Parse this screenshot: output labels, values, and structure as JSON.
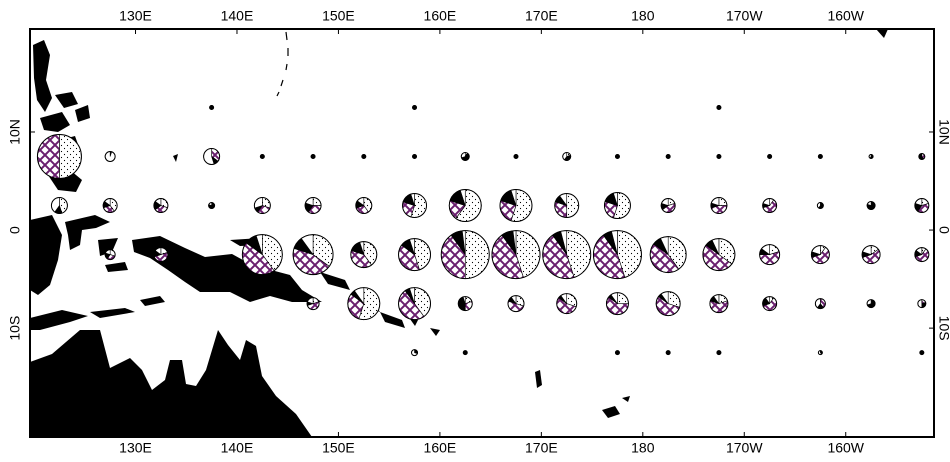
{
  "map": {
    "lon_range": [
      119.6,
      208.7
    ],
    "lat_range": [
      -21.1,
      20.5
    ],
    "lon_ticks": [
      {
        "value": 130,
        "label": "130E"
      },
      {
        "value": 140,
        "label": "140E"
      },
      {
        "value": 150,
        "label": "150E"
      },
      {
        "value": 160,
        "label": "160E"
      },
      {
        "value": 170,
        "label": "170E"
      },
      {
        "value": 180,
        "label": "180"
      },
      {
        "value": 190,
        "label": "170W"
      },
      {
        "value": 200,
        "label": "160W"
      }
    ],
    "lat_ticks": [
      {
        "value": 10,
        "label": "10N"
      },
      0,
      {
        "value": -10,
        "label": "10S"
      }
    ],
    "segment_colors": {
      "dotted": "dots",
      "hatched": "#6a1f6e",
      "black": "#000000",
      "white": "#ffffff"
    },
    "pies": [
      {
        "lat": 12.5,
        "points": [
          [
            137.5,
            2,
            0,
            0,
            100,
            0
          ],
          [
            157.5,
            2,
            0,
            0,
            100,
            0
          ],
          [
            187.5,
            2,
            0,
            0,
            100,
            0
          ]
        ]
      },
      {
        "lat": 7.5,
        "points": [
          [
            122.5,
            22,
            50,
            50,
            0,
            0
          ],
          [
            127.5,
            5,
            0,
            0,
            5,
            95
          ],
          [
            137.5,
            8,
            0,
            35,
            10,
            55
          ],
          [
            142.5,
            2,
            0,
            0,
            100,
            0
          ],
          [
            147.5,
            2,
            0,
            0,
            100,
            0
          ],
          [
            152.5,
            2,
            0,
            0,
            100,
            0
          ],
          [
            157.5,
            2,
            0,
            0,
            100,
            0
          ],
          [
            162.5,
            4,
            10,
            0,
            60,
            30
          ],
          [
            167.5,
            2,
            0,
            0,
            100,
            0
          ],
          [
            172.5,
            4,
            20,
            0,
            40,
            40
          ],
          [
            177.5,
            2,
            0,
            0,
            100,
            0
          ],
          [
            182.5,
            2,
            0,
            0,
            100,
            0
          ],
          [
            187.5,
            2,
            0,
            0,
            100,
            0
          ],
          [
            192.5,
            2,
            0,
            0,
            100,
            0
          ],
          [
            197.5,
            2,
            0,
            0,
            100,
            0
          ],
          [
            202.5,
            2,
            0,
            0,
            60,
            40
          ],
          [
            207.5,
            3,
            0,
            40,
            60,
            0
          ]
        ]
      },
      {
        "lat": 2.5,
        "points": [
          [
            122.5,
            8,
            45,
            0,
            15,
            40
          ],
          [
            127.5,
            7,
            40,
            30,
            15,
            15
          ],
          [
            132.5,
            7,
            30,
            35,
            20,
            15
          ],
          [
            137.5,
            3,
            0,
            0,
            80,
            20
          ],
          [
            142.5,
            8,
            30,
            30,
            10,
            30
          ],
          [
            147.5,
            8,
            25,
            35,
            20,
            20
          ],
          [
            152.5,
            8,
            40,
            30,
            15,
            15
          ],
          [
            157.5,
            12,
            55,
            25,
            15,
            5
          ],
          [
            162.5,
            16,
            60,
            20,
            15,
            5
          ],
          [
            167.5,
            16,
            55,
            25,
            15,
            5
          ],
          [
            172.5,
            12,
            50,
            30,
            10,
            10
          ],
          [
            177.5,
            13,
            55,
            25,
            15,
            5
          ],
          [
            182.5,
            7,
            20,
            45,
            15,
            20
          ],
          [
            187.5,
            8,
            25,
            45,
            10,
            20
          ],
          [
            192.5,
            7,
            10,
            60,
            10,
            20
          ],
          [
            197.5,
            3,
            0,
            0,
            60,
            40
          ],
          [
            202.5,
            4,
            0,
            0,
            80,
            20
          ],
          [
            207.5,
            7,
            20,
            40,
            20,
            20
          ]
        ]
      },
      {
        "lat": -2.5,
        "points": [
          [
            127.5,
            5,
            30,
            30,
            20,
            20
          ],
          [
            132.5,
            7,
            20,
            50,
            15,
            15
          ],
          [
            142.5,
            20,
            40,
            45,
            10,
            5
          ],
          [
            147.5,
            20,
            35,
            45,
            10,
            10
          ],
          [
            152.5,
            13,
            40,
            40,
            15,
            5
          ],
          [
            157.5,
            16,
            45,
            40,
            10,
            5
          ],
          [
            162.5,
            24,
            50,
            40,
            8,
            2
          ],
          [
            167.5,
            24,
            45,
            45,
            8,
            2
          ],
          [
            172.5,
            24,
            45,
            45,
            6,
            4
          ],
          [
            177.5,
            24,
            45,
            45,
            6,
            4
          ],
          [
            182.5,
            18,
            40,
            45,
            8,
            7
          ],
          [
            187.5,
            16,
            35,
            50,
            8,
            7
          ],
          [
            192.5,
            10,
            20,
            55,
            10,
            15
          ],
          [
            197.5,
            9,
            10,
            60,
            10,
            20
          ],
          [
            202.5,
            9,
            15,
            55,
            10,
            20
          ],
          [
            207.5,
            7,
            10,
            60,
            15,
            15
          ]
        ]
      },
      {
        "lat": -7.5,
        "points": [
          [
            147.5,
            6,
            20,
            50,
            10,
            20
          ],
          [
            152.5,
            16,
            55,
            30,
            5,
            10
          ],
          [
            157.5,
            16,
            40,
            50,
            5,
            5
          ],
          [
            162.5,
            7,
            20,
            30,
            45,
            5
          ],
          [
            167.5,
            8,
            30,
            50,
            10,
            10
          ],
          [
            172.5,
            10,
            30,
            55,
            5,
            10
          ],
          [
            177.5,
            11,
            25,
            60,
            5,
            10
          ],
          [
            182.5,
            12,
            30,
            55,
            5,
            10
          ],
          [
            187.5,
            9,
            20,
            60,
            10,
            10
          ],
          [
            192.5,
            7,
            10,
            60,
            20,
            10
          ],
          [
            197.5,
            5,
            0,
            40,
            20,
            40
          ],
          [
            202.5,
            4,
            0,
            0,
            70,
            30
          ],
          [
            207.5,
            4,
            0,
            20,
            30,
            50
          ]
        ]
      },
      {
        "lat": -12.5,
        "points": [
          [
            157.5,
            3,
            0,
            0,
            30,
            70
          ],
          [
            162.5,
            2,
            0,
            0,
            100,
            0
          ],
          [
            177.5,
            2,
            0,
            0,
            100,
            0
          ],
          [
            182.5,
            2,
            0,
            0,
            100,
            0
          ],
          [
            187.5,
            2,
            0,
            0,
            100,
            0
          ],
          [
            197.5,
            2,
            0,
            0,
            40,
            60
          ],
          [
            207.5,
            2,
            0,
            0,
            100,
            0
          ]
        ]
      }
    ]
  }
}
